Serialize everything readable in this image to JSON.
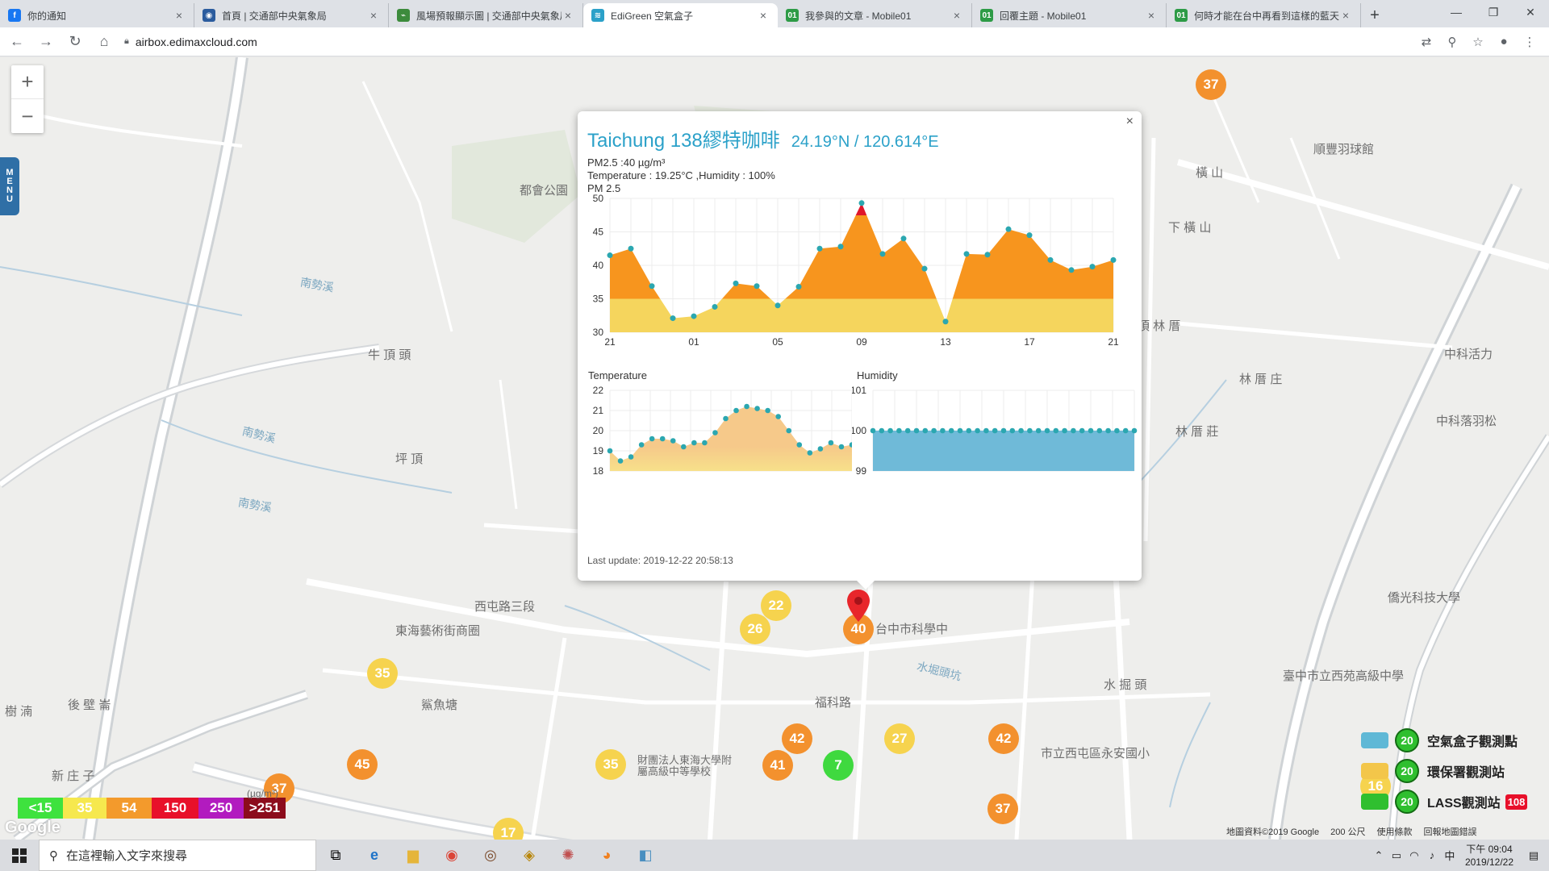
{
  "browser": {
    "tabs": [
      {
        "title": "你的通知",
        "favcolor": "#1877f2",
        "favtext": "f"
      },
      {
        "title": "首頁 | 交通部中央氣象局",
        "favcolor": "#2b5c9e",
        "favtext": "◉"
      },
      {
        "title": "風場預報顯示圖 | 交通部中央氣象局",
        "favcolor": "#3c8b3c",
        "favtext": "⌁"
      },
      {
        "title": "EdiGreen 空氣盒子",
        "favcolor": "#2ba1c9",
        "favtext": "≋",
        "active": true
      },
      {
        "title": "我參與的文章 - Mobile01",
        "favcolor": "#2d9b46",
        "favtext": "01"
      },
      {
        "title": "回覆主題 - Mobile01",
        "favcolor": "#2d9b46",
        "favtext": "01"
      },
      {
        "title": "何時才能在台中再看到這樣的藍天",
        "favcolor": "#2d9b46",
        "favtext": "01"
      }
    ],
    "new_tab": "+",
    "url": "airbox.edimaxcloud.com"
  },
  "map": {
    "labels": [
      {
        "text": "南勢溪",
        "type": "water"
      },
      {
        "text": "牛 頂 頭",
        "type": "place"
      },
      {
        "text": "坪 頂",
        "type": "place"
      },
      {
        "text": "南勢溪",
        "type": "water"
      },
      {
        "text": "南勢溪",
        "type": "water"
      },
      {
        "text": "都會公園",
        "type": "place"
      },
      {
        "text": "橫 山",
        "type": "place"
      },
      {
        "text": "下 橫 山",
        "type": "place"
      },
      {
        "text": "頂 林 厝",
        "type": "place"
      },
      {
        "text": "林 厝 庄",
        "type": "place"
      },
      {
        "text": "林 厝 莊",
        "type": "place"
      },
      {
        "text": "東海藝術街商圈",
        "type": "place"
      },
      {
        "text": "後 壁 崙",
        "type": "place"
      },
      {
        "text": "新 庄 子",
        "type": "place"
      },
      {
        "text": "鯊魚塘",
        "type": "place"
      },
      {
        "text": "水堀頭坑",
        "type": "water"
      },
      {
        "text": "水 掘 頭",
        "type": "place"
      },
      {
        "text": "財團法人東海大學附屬高級中等學校",
        "type": "place"
      },
      {
        "text": "市立西屯區永安國小",
        "type": "place"
      },
      {
        "text": "臺中市立西苑高級中學",
        "type": "place"
      },
      {
        "text": "僑光科技大學",
        "type": "place"
      },
      {
        "text": "順豐羽球館",
        "type": "place"
      },
      {
        "text": "樹 湳",
        "type": "place"
      },
      {
        "text": "中科活力",
        "type": "place"
      },
      {
        "text": "中科落羽松",
        "type": "place"
      },
      {
        "text": "西屯路三段",
        "type": "place"
      },
      {
        "text": "台中市科學中",
        "type": "place"
      },
      {
        "text": "福科路",
        "type": "place"
      }
    ],
    "markers": [
      {
        "value": "37",
        "color": "o"
      },
      {
        "value": "22",
        "color": "y"
      },
      {
        "value": "26",
        "color": "y"
      },
      {
        "value": "40",
        "color": "o"
      },
      {
        "value": "35",
        "color": "y"
      },
      {
        "value": "42",
        "color": "o"
      },
      {
        "value": "41",
        "color": "o"
      },
      {
        "value": "7",
        "color": "g"
      },
      {
        "value": "27",
        "color": "y"
      },
      {
        "value": "42",
        "color": "o"
      },
      {
        "value": "45",
        "color": "o"
      },
      {
        "value": "35",
        "color": "y"
      },
      {
        "value": "37",
        "color": "o"
      },
      {
        "value": "37",
        "color": "o"
      },
      {
        "value": "17",
        "color": "y"
      },
      {
        "value": "16",
        "color": "y"
      }
    ],
    "zoom_in": "+",
    "zoom_out": "−",
    "menu": [
      "M",
      "E",
      "N",
      "U"
    ],
    "legend": [
      {
        "label": "<15",
        "color": "#3ee23e"
      },
      {
        "label": "35",
        "color": "#f6e84e"
      },
      {
        "label": "54",
        "color": "#f39a2c"
      },
      {
        "label": "150",
        "color": "#e8102a"
      },
      {
        "label": "250",
        "color": "#b21bbf"
      },
      {
        "label": ">251",
        "color": "#8c0c1c"
      }
    ],
    "legend_unit": "(µg/m³)",
    "google": "Google",
    "station_legend": [
      {
        "label": "空氣盒子觀測點",
        "value": "20"
      },
      {
        "label": "環保署觀測站",
        "value": "20"
      },
      {
        "label": "LASS觀測站",
        "value": "20",
        "extra": "108"
      }
    ],
    "attribution": [
      "地圖資料©2019 Google",
      "200 公尺",
      "使用條款",
      "回報地圖錯誤"
    ]
  },
  "popup": {
    "station": "Taichung 138繆特咖啡",
    "coords": "24.19°N / 120.614°E",
    "pm25": "PM2.5 :40 µg/m³",
    "env": "Temperature : 19.25°C ,Humidity : 100%",
    "pm_title": "PM 2.5",
    "temp_title": "Temperature",
    "hum_title": "Humidity",
    "last_update": "Last update: 2019-12-22 20:58:13",
    "close": "×"
  },
  "chart_data": [
    {
      "type": "area",
      "title": "PM 2.5",
      "x_ticks": [
        "21",
        "01",
        "05",
        "09",
        "13",
        "17",
        "21"
      ],
      "y_ticks": [
        "30",
        "35",
        "40",
        "45",
        "50"
      ],
      "ylim": [
        30,
        50
      ],
      "values": [
        41.5,
        42.5,
        36.9,
        32.1,
        32.4,
        33.8,
        37.3,
        36.9,
        34.0,
        36.8,
        42.5,
        42.8,
        49.3,
        41.7,
        44.0,
        39.5,
        31.6,
        41.7,
        41.6,
        45.4,
        44.5,
        40.8,
        39.3,
        39.8,
        40.8
      ],
      "colors": {
        "fill_high": "#f7951e",
        "fill_low": "#f5d55d",
        "fill_peak": "#e0162b",
        "point": "#2ba7b0"
      }
    },
    {
      "type": "area",
      "title": "Temperature",
      "y_ticks": [
        "18",
        "19",
        "20",
        "21",
        "22"
      ],
      "ylim": [
        18,
        22
      ],
      "values": [
        19.0,
        18.5,
        18.7,
        19.3,
        19.6,
        19.6,
        19.5,
        19.2,
        19.4,
        19.4,
        19.9,
        20.6,
        21.0,
        21.2,
        21.1,
        21.0,
        20.7,
        20.0,
        19.3,
        18.9,
        19.1,
        19.4,
        19.2,
        19.3
      ],
      "colors": {
        "fill": "#f6c98a",
        "fill_low": "#f7e08a",
        "point": "#2ba7b0"
      }
    },
    {
      "type": "area",
      "title": "Humidity",
      "y_ticks": [
        "99",
        "100",
        "101"
      ],
      "ylim": [
        99,
        101
      ],
      "values": [
        100,
        100,
        100,
        100,
        100,
        100,
        100,
        100,
        100,
        100,
        100,
        100,
        100,
        100,
        100,
        100,
        100,
        100,
        100,
        100,
        100,
        100,
        100,
        100,
        100,
        100,
        100,
        100,
        100,
        100,
        100
      ],
      "colors": {
        "fill": "#6fbad8",
        "point": "#2ba7b0"
      }
    }
  ],
  "taskbar": {
    "search_placeholder": "在這裡輸入文字來搜尋",
    "time": "下午 09:04",
    "date": "2019/12/22",
    "ime": "中"
  }
}
